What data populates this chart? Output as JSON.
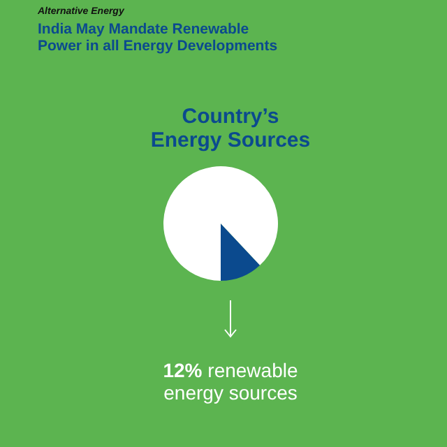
{
  "chart_data": {
    "type": "pie",
    "title": "India May Mandate Renewable Power in all Energy Developments",
    "subtitle": "Country’s Energy Sources",
    "annotations": [
      "Alternative Energy",
      "12% renewable energy sources"
    ],
    "categories": [
      null,
      null
    ],
    "values": [
      12,
      88
    ],
    "colors": [
      "#0b4a8e",
      "#ffffff"
    ]
  }
}
